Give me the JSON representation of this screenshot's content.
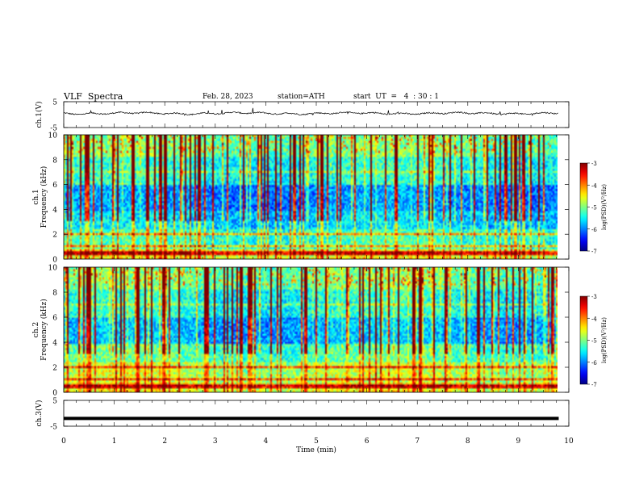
{
  "header": {
    "title": "VLF  Spectra",
    "date": "Feb. 28, 2023",
    "station": "station=ATH",
    "start_ut": "start  UT  =   4  : 30 : 1"
  },
  "chart_data": [
    {
      "type": "line",
      "panel": "ch1-waveform",
      "ylabel": "ch.1(V)",
      "ylim": [
        -5,
        5
      ],
      "yticks": [
        "5",
        "-5"
      ],
      "x_range_min": [
        0,
        9.8
      ],
      "baseline_v": 0.5,
      "color": "#000000"
    },
    {
      "type": "heatmap",
      "panel": "ch1-spectrogram",
      "channel_label": "ch.1",
      "ylabel": "Frequency (kHz)",
      "ylim": [
        0,
        10
      ],
      "yticks": [
        "0",
        "2",
        "4",
        "6",
        "8",
        "10"
      ],
      "x_range_min": [
        0,
        9.8
      ],
      "colorbar": {
        "label": "log(PSD)(V²/Hz)",
        "range": [
          -7,
          -3
        ],
        "ticks": [
          "-3",
          "-4",
          "-5",
          "-6",
          "-7"
        ]
      }
    },
    {
      "type": "heatmap",
      "panel": "ch2-spectrogram",
      "channel_label": "ch.2",
      "ylabel": "Frequency (kHz)",
      "ylim": [
        0,
        10
      ],
      "yticks": [
        "0",
        "2",
        "4",
        "6",
        "8",
        "10"
      ],
      "x_range_min": [
        0,
        9.8
      ],
      "colorbar": {
        "label": "log(PSD)(V²/Hz)",
        "range": [
          -7,
          -3
        ],
        "ticks": [
          "-3",
          "-4",
          "-5",
          "-6",
          "-7"
        ]
      }
    },
    {
      "type": "line",
      "panel": "ch3-waveform",
      "ylabel": "ch.3(V)",
      "ylim": [
        -5,
        5
      ],
      "yticks": [
        "5",
        "-5"
      ],
      "x_range_min": [
        0,
        9.8
      ],
      "constant_v": -2,
      "color": "#000000"
    }
  ],
  "x_axis": {
    "label": "Time  (min)",
    "range": [
      0,
      10
    ],
    "ticks": [
      "0",
      "1",
      "2",
      "3",
      "4",
      "5",
      "6",
      "7",
      "8",
      "9",
      "10"
    ]
  }
}
